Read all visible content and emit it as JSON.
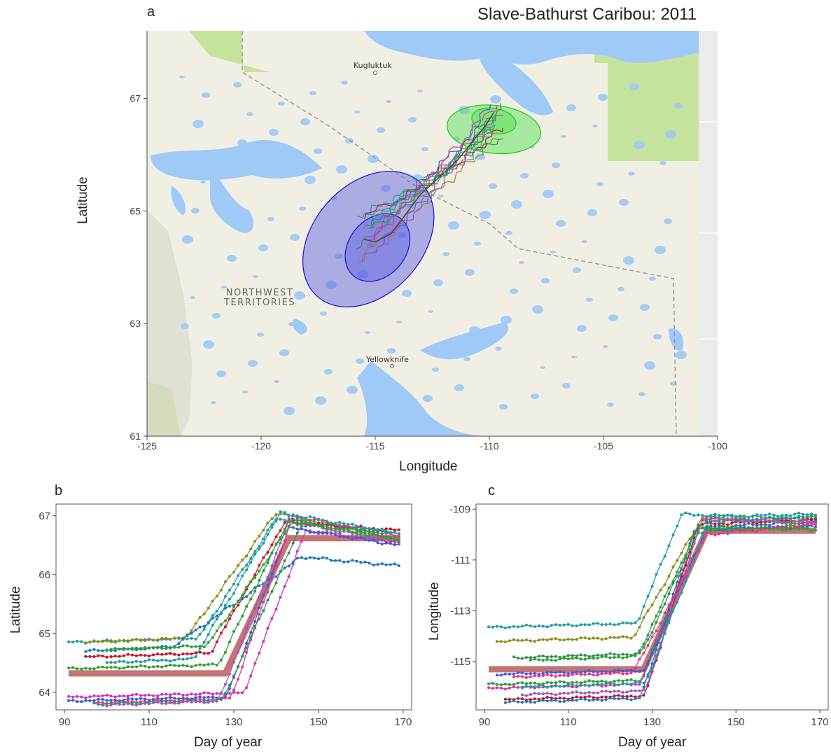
{
  "title": "Slave-Bathurst Caribou: 2011",
  "panels": {
    "a": {
      "letter": "a",
      "xlabel": "Longitude",
      "ylabel": "Latitude",
      "place_labels": {
        "kugluktuk": "Kugluktuk",
        "yellowknife": "Yellowknife",
        "territory_line1": "NORTHWEST",
        "territory_line2": "TERRITORIES"
      }
    },
    "b": {
      "letter": "b",
      "xlabel": "Day of year",
      "ylabel": "Latitude"
    },
    "c": {
      "letter": "c",
      "xlabel": "Day of year",
      "ylabel": "Longitude"
    }
  },
  "colors": {
    "map_land": "#f1efe4",
    "map_water": "#9fcaf7",
    "map_park": "#c6e39e",
    "winter_ellipse": "#5c5ce0",
    "summer_ellipse": "#4de04d",
    "mean_band": "#a52a2a",
    "series": [
      "#1f9e9e",
      "#2ca02c",
      "#d62fb4",
      "#3b5bd6",
      "#8c8c1a",
      "#c8102e",
      "#1f77b4",
      "#e6328c",
      "#2f8f5b",
      "#9b59b6"
    ]
  },
  "chart_data": [
    {
      "type": "line",
      "panel": "a",
      "xlim": [
        -125,
        -100
      ],
      "ylim": [
        61,
        68.2
      ],
      "xticks": [
        -125,
        -120,
        -115,
        -110,
        -105,
        -100
      ],
      "yticks": [
        61,
        63,
        65,
        67
      ],
      "winter_range_ellipses": [
        {
          "cx": -115.3,
          "cy": 64.5,
          "rx": 2.4,
          "ry": 0.62,
          "angle_deg": -42
        },
        {
          "cx": -114.9,
          "cy": 64.35,
          "rx": 1.25,
          "ry": 0.3,
          "angle_deg": -40
        }
      ],
      "summer_range_ellipses": [
        {
          "cx": -109.8,
          "cy": 66.45,
          "rx": 1.05,
          "ry": 0.38,
          "angle_deg": 84
        },
        {
          "cx": -109.8,
          "cy": 66.6,
          "rx": 0.55,
          "ry": 0.18,
          "angle_deg": 80
        }
      ],
      "mean_track": [
        [
          -115.5,
          64.5
        ],
        [
          -115.0,
          64.45
        ],
        [
          -114.3,
          64.6
        ],
        [
          -113.0,
          65.3
        ],
        [
          -111.4,
          65.9
        ],
        [
          -110.2,
          66.5
        ],
        [
          -109.8,
          66.75
        ]
      ]
    },
    {
      "type": "line",
      "panel": "b",
      "xlim": [
        88,
        172
      ],
      "ylim": [
        63.7,
        67.2
      ],
      "xticks": [
        90,
        110,
        130,
        150,
        170
      ],
      "yticks": [
        64,
        65,
        66,
        67
      ],
      "mean_band": [
        [
          91,
          64.32
        ],
        [
          128,
          64.32
        ],
        [
          143,
          66.62
        ],
        [
          169,
          66.62
        ]
      ],
      "series": [
        {
          "start_day": 91,
          "y0": 64.85,
          "switch_day": 121,
          "end_day": 140,
          "y1": 66.95,
          "late": 66.7
        },
        {
          "start_day": 91,
          "y0": 64.4,
          "switch_day": 126,
          "end_day": 143,
          "y1": 66.95,
          "late": 66.6
        },
        {
          "start_day": 91,
          "y0": 63.92,
          "switch_day": 132,
          "end_day": 147,
          "y1": 66.75,
          "late": 66.55
        },
        {
          "start_day": 91,
          "y0": 63.85,
          "switch_day": 128,
          "end_day": 143,
          "y1": 66.8,
          "late": 66.5
        },
        {
          "start_day": 95,
          "y0": 64.85,
          "switch_day": 118,
          "end_day": 140,
          "y1": 67.05,
          "late": 66.6
        },
        {
          "start_day": 95,
          "y0": 64.6,
          "switch_day": 124,
          "end_day": 142,
          "y1": 66.9,
          "late": 66.75
        },
        {
          "start_day": 95,
          "y0": 64.7,
          "switch_day": 114,
          "end_day": 146,
          "y1": 66.3,
          "late": 66.15
        },
        {
          "start_day": 97,
          "y0": 63.82,
          "switch_day": 129,
          "end_day": 144,
          "y1": 67.0,
          "late": 66.65
        },
        {
          "start_day": 97,
          "y0": 63.8,
          "switch_day": 127,
          "end_day": 146,
          "y1": 66.85,
          "late": 66.7
        },
        {
          "start_day": 99,
          "y0": 63.78,
          "switch_day": 126,
          "end_day": 143,
          "y1": 66.9,
          "late": 66.55
        },
        {
          "start_day": 100,
          "y0": 64.5,
          "switch_day": 120,
          "end_day": 141,
          "y1": 67.05,
          "late": 66.7
        },
        {
          "start_day": 100,
          "y0": 64.72,
          "switch_day": 123,
          "end_day": 144,
          "y1": 66.9,
          "late": 66.6
        }
      ]
    },
    {
      "type": "line",
      "panel": "c",
      "xlim": [
        88,
        172
      ],
      "ylim": [
        -116.9,
        -108.8
      ],
      "xticks": [
        90,
        110,
        130,
        150,
        170
      ],
      "yticks": [
        -115,
        -113,
        -111,
        -109
      ],
      "mean_band": [
        [
          91,
          -115.3
        ],
        [
          128,
          -115.3
        ],
        [
          143,
          -109.85
        ],
        [
          169,
          -109.85
        ]
      ],
      "series": [
        {
          "start_day": 91,
          "y0": -113.65,
          "switch_day": 126,
          "end_day": 137,
          "y1": -109.2,
          "late": -109.4
        },
        {
          "start_day": 91,
          "y0": -115.9,
          "switch_day": 127,
          "end_day": 141,
          "y1": -109.9,
          "late": -109.6
        },
        {
          "start_day": 91,
          "y0": -116.05,
          "switch_day": 127,
          "end_day": 142,
          "y1": -109.4,
          "late": -109.5
        },
        {
          "start_day": 93,
          "y0": -115.5,
          "switch_day": 128,
          "end_day": 143,
          "y1": -109.7,
          "late": -109.5
        },
        {
          "start_day": 93,
          "y0": -114.2,
          "switch_day": 125,
          "end_day": 142,
          "y1": -109.3,
          "late": -109.6
        },
        {
          "start_day": 95,
          "y0": -116.5,
          "switch_day": 128,
          "end_day": 141,
          "y1": -109.6,
          "late": -109.4
        },
        {
          "start_day": 95,
          "y0": -116.6,
          "switch_day": 127,
          "end_day": 140,
          "y1": -109.8,
          "late": -109.7
        },
        {
          "start_day": 97,
          "y0": -115.6,
          "switch_day": 125,
          "end_day": 143,
          "y1": -110.0,
          "late": -109.6
        },
        {
          "start_day": 97,
          "y0": -114.85,
          "switch_day": 127,
          "end_day": 142,
          "y1": -109.5,
          "late": -109.3
        },
        {
          "start_day": 99,
          "y0": -116.3,
          "switch_day": 128,
          "end_day": 142,
          "y1": -109.4,
          "late": -109.5
        },
        {
          "start_day": 99,
          "y0": -116.0,
          "switch_day": 128,
          "end_day": 144,
          "y1": -109.3,
          "late": -109.2
        },
        {
          "start_day": 101,
          "y0": -114.95,
          "switch_day": 126,
          "end_day": 141,
          "y1": -109.7,
          "late": -109.8
        }
      ]
    }
  ]
}
